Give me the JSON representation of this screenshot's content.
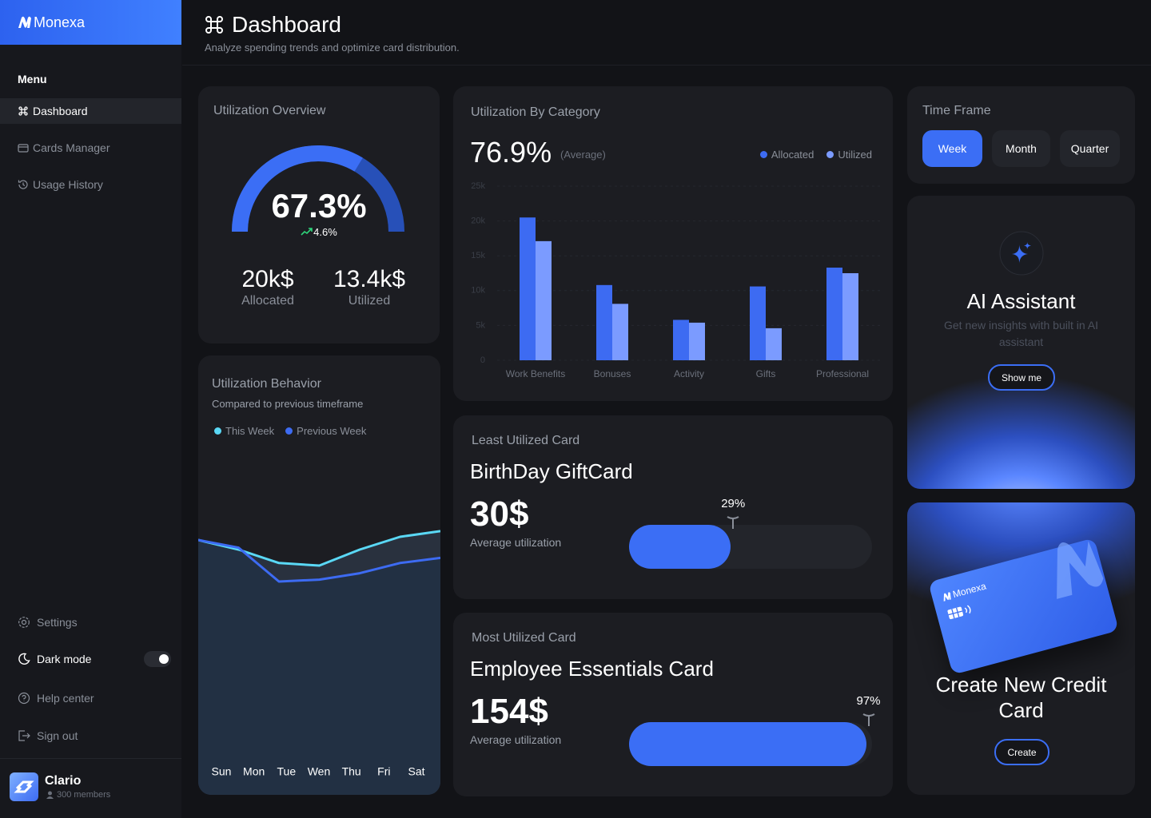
{
  "sidebar": {
    "brand": "Monexa",
    "menu_title": "Menu",
    "menu": [
      "Dashboard",
      "Cards Manager",
      "Usage History"
    ],
    "active": 0,
    "bottom_menu": [
      "Settings",
      "Dark mode",
      "Help center",
      "Sign out"
    ],
    "dark_mode": true,
    "user": {
      "name": "Clario",
      "members": "300 members"
    }
  },
  "header": {
    "title": "Dashboard",
    "subtitle": "Analyze spending trends and optimize card distribution."
  },
  "utilization_overview": {
    "title": "Utilization Overview",
    "value": 67.3,
    "value_label": "67.3%",
    "range": [
      0,
      100
    ],
    "change": "4.6%",
    "stats": [
      {
        "value": "20k$",
        "label": "Allocated"
      },
      {
        "value": "13.4k$",
        "label": "Utilized"
      }
    ]
  },
  "chart_data": [
    {
      "type": "bar",
      "title": "Utilization By Category",
      "headline": "76.9%",
      "headline_note": "(Average)",
      "categories": [
        "Work Benefits",
        "Bonuses",
        "Activity",
        "Gifts",
        "Professional"
      ],
      "series": [
        {
          "name": "Allocated",
          "color": "#3d6bf2",
          "values": [
            20500,
            10800,
            5800,
            10600,
            13300
          ]
        },
        {
          "name": "Utilized",
          "color": "#7b9bff",
          "values": [
            17100,
            8100,
            5400,
            4600,
            12500
          ]
        }
      ],
      "ylim": [
        0,
        25000
      ],
      "yticks": [
        0,
        {
          "value": 5000,
          "label": "5k"
        },
        {
          "value": 10000,
          "label": "10k"
        },
        {
          "value": 15000,
          "label": "15k"
        },
        {
          "value": 20000,
          "label": "20k"
        },
        {
          "value": 25000,
          "label": "25k"
        }
      ],
      "grid": true,
      "legend": "top-right"
    },
    {
      "type": "line",
      "title": "Utilization Behavior",
      "subtitle": "Compared to previous timeframe",
      "categories": [
        "Sun",
        "Mon",
        "Tue",
        "Wen",
        "Thu",
        "Fri",
        "Sat"
      ],
      "series": [
        {
          "name": "This Week",
          "color": "#5ad8f5",
          "values": [
            65,
            57.5,
            47,
            45,
            57.5,
            67.5,
            72
          ]
        },
        {
          "name": "Previous Week",
          "color": "#3d6bf2",
          "values": [
            65,
            59,
            32.5,
            34,
            39,
            47,
            51
          ]
        }
      ],
      "ylim": [
        0,
        100
      ],
      "area": true,
      "legend": "top-left"
    }
  ],
  "least_utilized": {
    "title": "Least Utilized Card",
    "name": "BirthDay GiftCard",
    "amount": "30$",
    "amount_note": "Average utilization",
    "percent": 29,
    "percent_label": "29%",
    "range": [
      0,
      100
    ]
  },
  "most_utilized": {
    "title": "Most Utilized Card",
    "name": "Employee Essentials Card",
    "amount": "154$",
    "amount_note": "Average utilization",
    "percent": 97,
    "percent_label": "97%",
    "range": [
      0,
      100
    ]
  },
  "time_frame": {
    "title": "Time Frame",
    "options": [
      "Week",
      "Month",
      "Quarter"
    ],
    "selected": 0
  },
  "ai_assistant": {
    "title": "AI Assistant",
    "description": "Get new insights with built in AI assistant",
    "button": "Show me"
  },
  "create_card": {
    "card_brand": "Monexa",
    "title": "Create New Credit Card",
    "button": "Create"
  }
}
